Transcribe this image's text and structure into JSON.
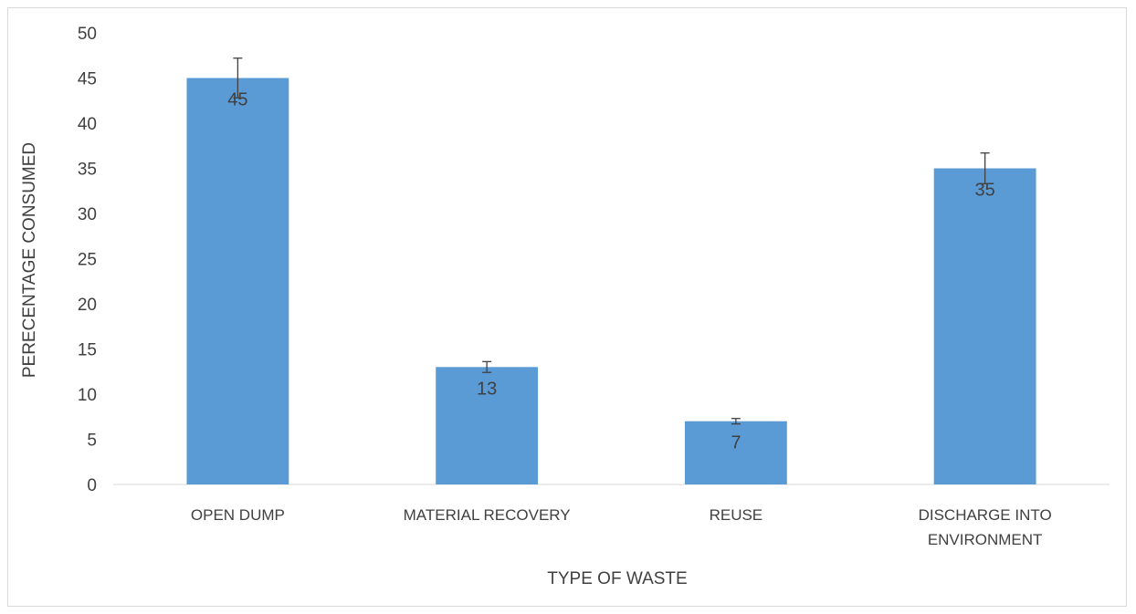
{
  "chart_data": {
    "type": "bar",
    "title": "",
    "xlabel": "TYPE OF WASTE",
    "ylabel": "PERECENTAGE CONSUMED",
    "categories": [
      [
        "OPEN DUMP"
      ],
      [
        "MATERIAL RECOVERY"
      ],
      [
        "REUSE"
      ],
      [
        "DISCHARGE INTO",
        "ENVIRONMENT"
      ]
    ],
    "values": [
      45,
      13,
      7,
      35
    ],
    "data_labels": [
      "45",
      "13",
      "7",
      "35"
    ],
    "error_bars": [
      {
        "low": 42.8,
        "high": 47.2
      },
      {
        "low": 12.4,
        "high": 13.6
      },
      {
        "low": 6.7,
        "high": 7.3
      },
      {
        "low": 33.3,
        "high": 36.7
      }
    ],
    "ylim": [
      0,
      50
    ],
    "yticks": [
      0,
      5,
      10,
      15,
      20,
      25,
      30,
      35,
      40,
      45,
      50
    ],
    "grid": false,
    "legend": "none",
    "bar_color": "#5b9bd5",
    "axis_color": "#d9d9d9",
    "text_color": "#404040"
  }
}
